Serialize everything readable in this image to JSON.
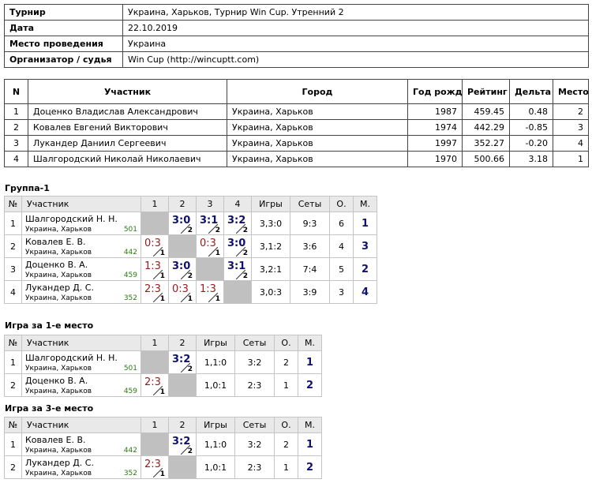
{
  "info": {
    "rows": [
      [
        "Турнир",
        "Украина, Харьков, Турнир Win Cup. Утренний 2"
      ],
      [
        "Дата",
        "22.10.2019"
      ],
      [
        "Место проведения",
        "Украина"
      ],
      [
        "Организатор / судья",
        "Win Cup (http://wincuptt.com)"
      ]
    ]
  },
  "participants": {
    "headers": [
      "N",
      "Участник",
      "Город",
      "Год рожд.",
      "Рейтинг",
      "Дельта",
      "Место"
    ],
    "rows": [
      [
        "1",
        "Доценко Владислав Александрович",
        "Украина, Харьков",
        "1987",
        "459.45",
        "0.48",
        "2"
      ],
      [
        "2",
        "Ковалев Евгений Викторович",
        "Украина, Харьков",
        "1974",
        "442.29",
        "-0.85",
        "3"
      ],
      [
        "3",
        "Лукандер Даниил Сергеевич",
        "Украина, Харьков",
        "1997",
        "352.27",
        "-0.20",
        "4"
      ],
      [
        "4",
        "Шалгородский Николай Николаевич",
        "Украина, Харьков",
        "1970",
        "500.66",
        "3.18",
        "1"
      ]
    ]
  },
  "groups": [
    {
      "title": "Группа-1",
      "headers": [
        "№",
        "Участник",
        "1",
        "2",
        "3",
        "4",
        "Игры",
        "Сеты",
        "О.",
        "М."
      ],
      "rows": [
        {
          "n": "1",
          "name": "Шалгородский Н. Н.",
          "city": "Украина, Харьков",
          "rating": "501",
          "results": [
            null,
            {
              "score": "3:0",
              "pts": "2"
            },
            {
              "score": "3:1",
              "pts": "2"
            },
            {
              "score": "3:2",
              "pts": "2"
            }
          ],
          "games": "3,3:0",
          "sets": "9:3",
          "points": "6",
          "place": "1"
        },
        {
          "n": "2",
          "name": "Ковалев Е. В.",
          "city": "Украина, Харьков",
          "rating": "442",
          "results": [
            {
              "score": "0:3",
              "pts": "1"
            },
            null,
            {
              "score": "0:3",
              "pts": "1"
            },
            {
              "score": "3:0",
              "pts": "2"
            }
          ],
          "games": "3,1:2",
          "sets": "3:6",
          "points": "4",
          "place": "3"
        },
        {
          "n": "3",
          "name": "Доценко В. А.",
          "city": "Украина, Харьков",
          "rating": "459",
          "results": [
            {
              "score": "1:3",
              "pts": "1"
            },
            {
              "score": "3:0",
              "pts": "2"
            },
            null,
            {
              "score": "3:1",
              "pts": "2"
            }
          ],
          "games": "3,2:1",
          "sets": "7:4",
          "points": "5",
          "place": "2"
        },
        {
          "n": "4",
          "name": "Лукандер Д. С.",
          "city": "Украина, Харьков",
          "rating": "352",
          "results": [
            {
              "score": "2:3",
              "pts": "1"
            },
            {
              "score": "0:3",
              "pts": "1"
            },
            {
              "score": "1:3",
              "pts": "1"
            },
            null
          ],
          "games": "3,0:3",
          "sets": "3:9",
          "points": "3",
          "place": "4"
        }
      ]
    },
    {
      "title": "Игра за 1-е место",
      "headers": [
        "№",
        "Участник",
        "1",
        "2",
        "Игры",
        "Сеты",
        "О.",
        "М."
      ],
      "rows": [
        {
          "n": "1",
          "name": "Шалгородский Н. Н.",
          "city": "Украина, Харьков",
          "rating": "501",
          "results": [
            null,
            {
              "score": "3:2",
              "pts": "2"
            }
          ],
          "games": "1,1:0",
          "sets": "3:2",
          "points": "2",
          "place": "1"
        },
        {
          "n": "2",
          "name": "Доценко В. А.",
          "city": "Украина, Харьков",
          "rating": "459",
          "results": [
            {
              "score": "2:3",
              "pts": "1"
            },
            null
          ],
          "games": "1,0:1",
          "sets": "2:3",
          "points": "1",
          "place": "2"
        }
      ]
    },
    {
      "title": "Игра за 3-е место",
      "headers": [
        "№",
        "Участник",
        "1",
        "2",
        "Игры",
        "Сеты",
        "О.",
        "М."
      ],
      "rows": [
        {
          "n": "1",
          "name": "Ковалев Е. В.",
          "city": "Украина, Харьков",
          "rating": "442",
          "results": [
            null,
            {
              "score": "3:2",
              "pts": "2"
            }
          ],
          "games": "1,1:0",
          "sets": "3:2",
          "points": "2",
          "place": "1"
        },
        {
          "n": "2",
          "name": "Лукандер Д. С.",
          "city": "Украина, Харьков",
          "rating": "352",
          "results": [
            {
              "score": "2:3",
              "pts": "1"
            },
            null
          ],
          "games": "1,0:1",
          "sets": "2:3",
          "points": "1",
          "place": "2"
        }
      ]
    }
  ]
}
